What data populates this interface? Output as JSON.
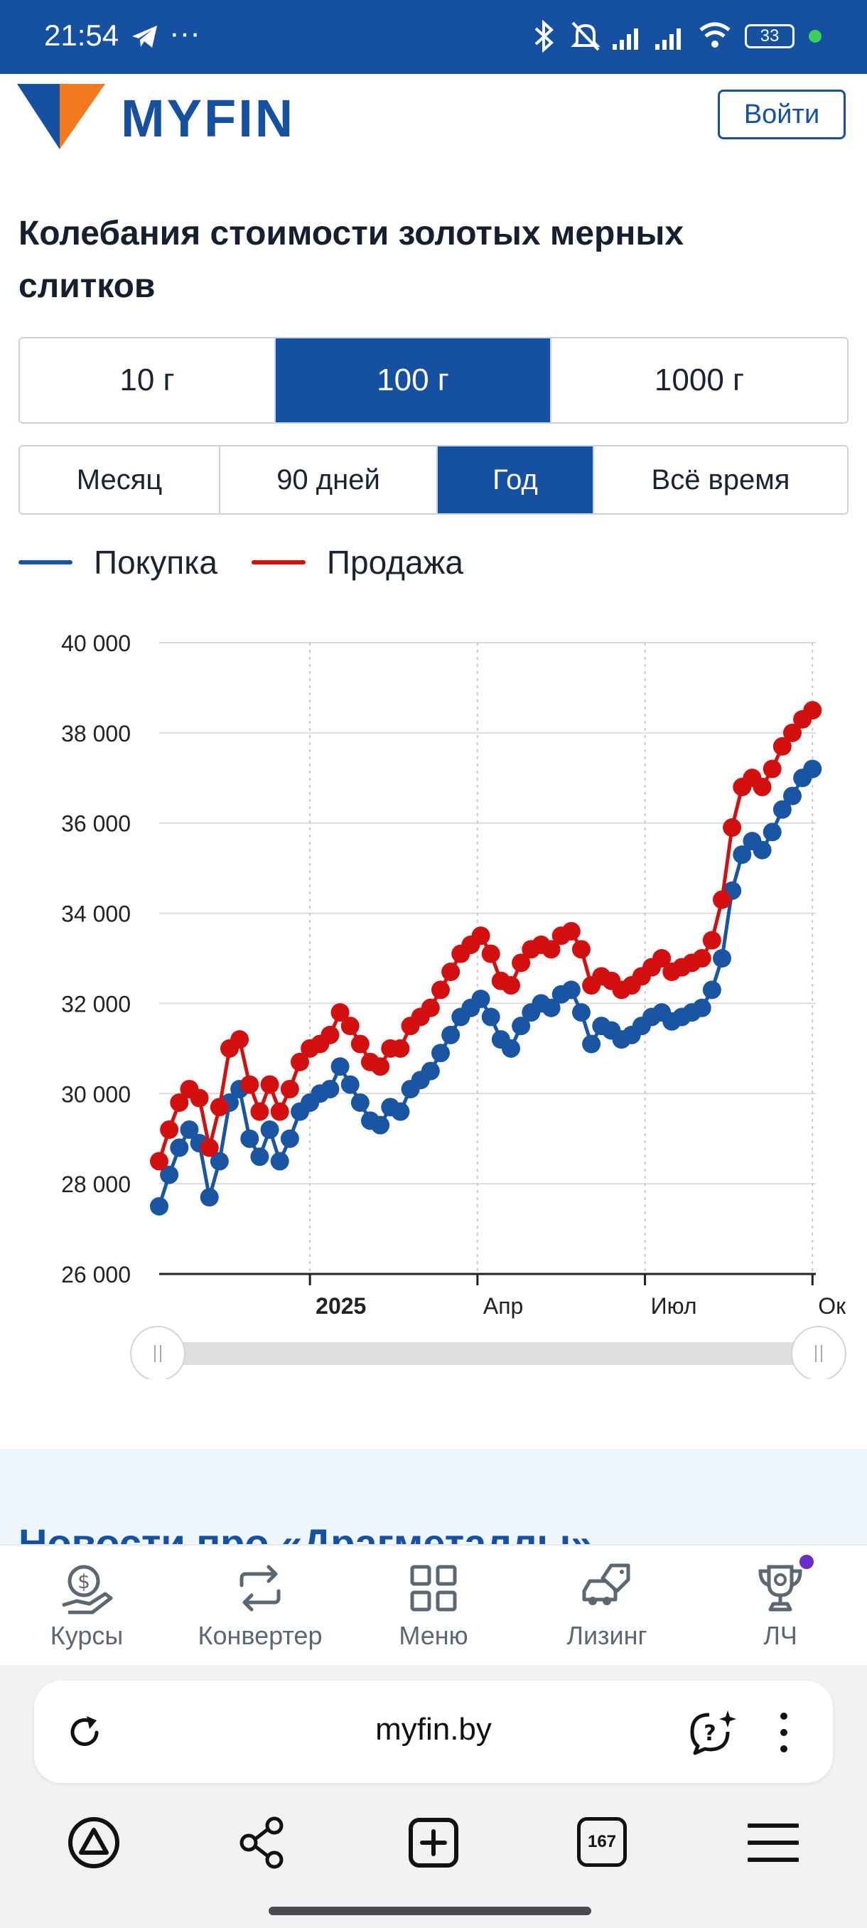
{
  "status_bar": {
    "time": "21:54",
    "dots": "···",
    "battery": "33",
    "icons": [
      "telegram-icon",
      "bluetooth-icon",
      "bell-muted-icon",
      "signal-icon",
      "signal-icon",
      "wifi-icon",
      "battery-icon"
    ]
  },
  "header": {
    "logo": "MYFIN",
    "login_label": "Войти",
    "brand_color": "#1551a0",
    "accent_color": "#f47a20"
  },
  "page": {
    "title": "Колебания стоимости золотых мерных слитков"
  },
  "weight_options": [
    {
      "label": "10 г",
      "active": false
    },
    {
      "label": "100 г",
      "active": true
    },
    {
      "label": "1000 г",
      "active": false
    }
  ],
  "period_options": [
    {
      "label": "Месяц",
      "active": false
    },
    {
      "label": "90 дней",
      "active": false
    },
    {
      "label": "Год",
      "active": true
    },
    {
      "label": "Всё время",
      "active": false
    }
  ],
  "legend": {
    "buy": "Покупка",
    "sell": "Продажа",
    "buy_color": "#1a55a3",
    "sell_color": "#d40f0f"
  },
  "chart_data": {
    "type": "line",
    "ylim": [
      26000,
      40000
    ],
    "y_ticks": [
      "40 000",
      "38 000",
      "36 000",
      "34 000",
      "32 000",
      "30 000",
      "28 000",
      "26 000"
    ],
    "y_tick_values": [
      40000,
      38000,
      36000,
      34000,
      32000,
      30000,
      28000,
      26000
    ],
    "x_ticks": [
      {
        "label": "2025",
        "x": 90,
        "bold": true
      },
      {
        "label": "Апр",
        "x": 190,
        "bold": false
      },
      {
        "label": "Июл",
        "x": 290,
        "bold": false
      },
      {
        "label": "Ок",
        "x": 390,
        "bold": false
      }
    ],
    "xlim": [
      0,
      392
    ],
    "grid": true,
    "legend_position": "top-left",
    "series": [
      {
        "name": "Покупка",
        "color": "#1a55a3",
        "x": [
          0,
          6,
          12,
          18,
          24,
          30,
          36,
          42,
          48,
          54,
          60,
          66,
          72,
          78,
          84,
          90,
          96,
          102,
          108,
          114,
          120,
          126,
          132,
          138,
          144,
          150,
          156,
          162,
          168,
          174,
          180,
          186,
          192,
          198,
          204,
          210,
          216,
          222,
          228,
          234,
          240,
          246,
          252,
          258,
          264,
          270,
          276,
          282,
          288,
          294,
          300,
          306,
          312,
          318,
          324,
          330,
          336,
          342,
          348,
          354,
          360,
          366,
          372,
          378,
          384,
          390
        ],
        "values": [
          27500,
          28200,
          28800,
          29200,
          28900,
          27700,
          28500,
          29800,
          30100,
          29000,
          28600,
          29200,
          28500,
          29000,
          29600,
          29800,
          30000,
          30100,
          30600,
          30200,
          29800,
          29400,
          29300,
          29700,
          29600,
          30100,
          30300,
          30500,
          30900,
          31300,
          31700,
          31900,
          32100,
          31700,
          31200,
          31000,
          31500,
          31800,
          32000,
          31900,
          32200,
          32300,
          31800,
          31100,
          31500,
          31400,
          31200,
          31300,
          31500,
          31700,
          31800,
          31600,
          31700,
          31800,
          31900,
          32300,
          33000,
          34500,
          35300,
          35600,
          35400,
          35800,
          36300,
          36600,
          37000,
          37200
        ]
      },
      {
        "name": "Продажа",
        "color": "#d40f0f",
        "x": [
          0,
          6,
          12,
          18,
          24,
          30,
          36,
          42,
          48,
          54,
          60,
          66,
          72,
          78,
          84,
          90,
          96,
          102,
          108,
          114,
          120,
          126,
          132,
          138,
          144,
          150,
          156,
          162,
          168,
          174,
          180,
          186,
          192,
          198,
          204,
          210,
          216,
          222,
          228,
          234,
          240,
          246,
          252,
          258,
          264,
          270,
          276,
          282,
          288,
          294,
          300,
          306,
          312,
          318,
          324,
          330,
          336,
          342,
          348,
          354,
          360,
          366,
          372,
          378,
          384,
          390
        ],
        "values": [
          28500,
          29200,
          29800,
          30100,
          29900,
          28800,
          29700,
          31000,
          31200,
          30200,
          29600,
          30200,
          29600,
          30100,
          30700,
          31000,
          31100,
          31300,
          31800,
          31500,
          31100,
          30700,
          30600,
          31000,
          31000,
          31500,
          31700,
          31900,
          32300,
          32700,
          33100,
          33300,
          33500,
          33100,
          32500,
          32400,
          32900,
          33200,
          33300,
          33200,
          33500,
          33600,
          33200,
          32400,
          32600,
          32500,
          32300,
          32400,
          32600,
          32800,
          33000,
          32700,
          32800,
          32900,
          33000,
          33400,
          34300,
          35900,
          36800,
          37000,
          36800,
          37200,
          37700,
          38000,
          38300,
          38500
        ]
      }
    ]
  },
  "news": {
    "title": "Новости про «Драгметаллы»"
  },
  "bottom_nav": [
    {
      "label": "Курсы",
      "icon": "currency-hand-icon"
    },
    {
      "label": "Конвертер",
      "icon": "exchange-arrows-icon"
    },
    {
      "label": "Меню",
      "icon": "grid-menu-icon"
    },
    {
      "label": "Лизинг",
      "icon": "car-tag-icon"
    },
    {
      "label": "ЛЧ",
      "icon": "trophy-icon"
    }
  ],
  "browser": {
    "url": "myfin.by",
    "tabs_count": "167"
  }
}
